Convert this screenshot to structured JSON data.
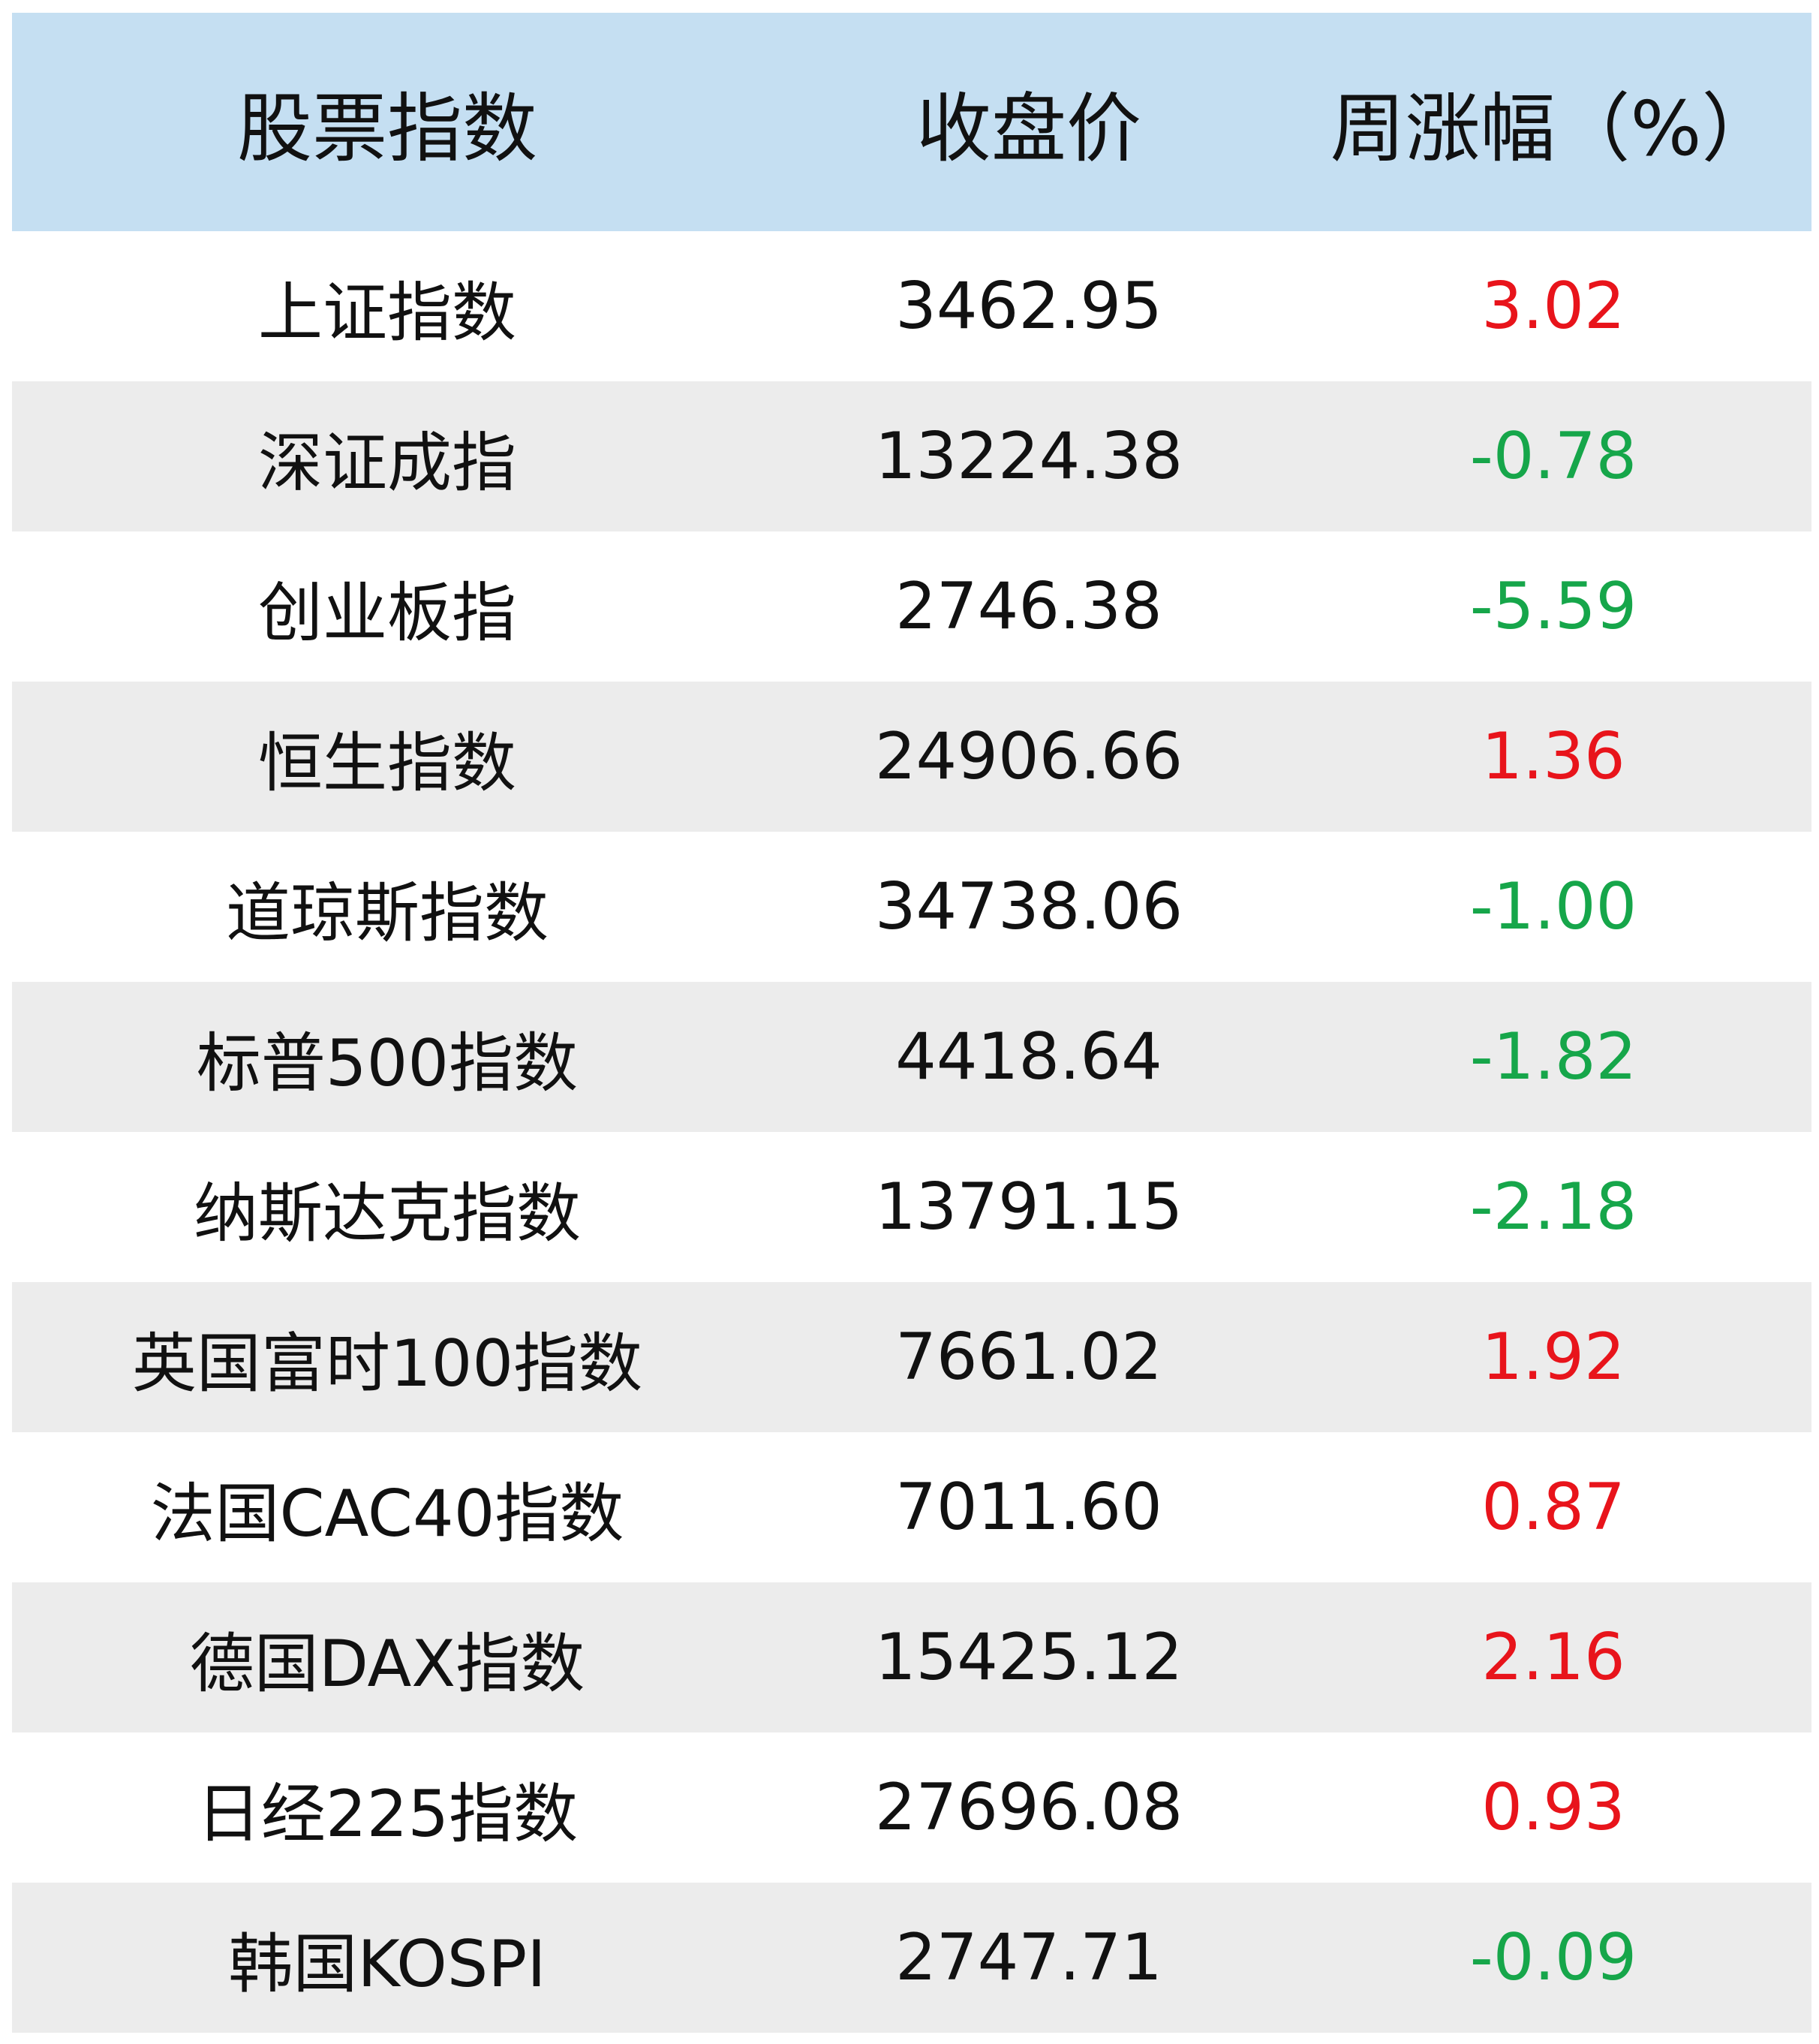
{
  "table": {
    "header": [
      "股票指数",
      "收盘价",
      "周涨幅（%）"
    ],
    "rows": [
      [
        "上证指数",
        "3462.95",
        "3.02"
      ],
      [
        "深证成指",
        "13224.38",
        "-0.78"
      ],
      [
        "创业板指",
        "2746.38",
        "-5.59"
      ],
      [
        "恒生指数",
        "24906.66",
        "1.36"
      ],
      [
        "道琼斯指数",
        "34738.06",
        "-1.00"
      ],
      [
        "标普500指数",
        "4418.64",
        "-1.82"
      ],
      [
        "纳斯达克指数",
        "13791.15",
        "-2.18"
      ],
      [
        "英国富时100指数",
        "7661.02",
        "1.92"
      ],
      [
        "法国CAC40指数",
        "7011.60",
        "0.87"
      ],
      [
        "德国DAX指数",
        "15425.12",
        "2.16"
      ],
      [
        "日经225指数",
        "27696.08",
        "0.93"
      ],
      [
        "韩国KOSPI",
        "2747.71",
        "-0.09"
      ]
    ],
    "colors": {
      "up": "#e8141b",
      "down": "#16a64a"
    }
  }
}
